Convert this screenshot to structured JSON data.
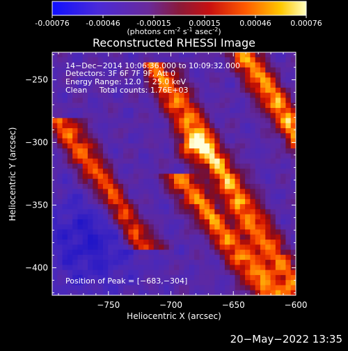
{
  "colorbar": {
    "ticks": [
      "-0.00076",
      "-0.00046",
      "-0.00015",
      "0.00015",
      "0.00046",
      "0.00076"
    ],
    "units_prefix": "(photons cm",
    "units_exp1": "-2",
    "units_s": " s",
    "units_exp2": "-1",
    "units_asec": " asec",
    "units_exp3": "-2",
    "units_suffix": ")"
  },
  "chart_data": {
    "type": "heatmap",
    "title": "Reconstructed RHESSI Image",
    "xlabel": "Heliocentric X (arcsec)",
    "ylabel": "Heliocentric Y (arcsec)",
    "xlim": [
      -795,
      -600
    ],
    "ylim": [
      -422,
      -228
    ],
    "xticks": [
      -750,
      -700,
      -650,
      -600
    ],
    "yticks": [
      -250,
      -300,
      -350,
      -400
    ],
    "xtick_labels": [
      "−750",
      "−700",
      "−650",
      "−600"
    ],
    "ytick_labels": [
      "−250",
      "−300",
      "−350",
      "−400"
    ],
    "value_range": [
      -0.00076,
      0.00076
    ],
    "peak": [
      -683,
      -304
    ],
    "colors": {
      "min": "#2b1bd0",
      "low": "#5a2aa8",
      "mid": "#8a1a3a",
      "high": "#ff3a00",
      "max": "#ffffff"
    },
    "annotations": {
      "line1": "14−Dec−2014 10:06:36.000 to 10:09:32.000",
      "line2": "Detectors: 3F 6F 7F 9F, Att 0",
      "line3": "Energy Range: 12.0 − 25.0 keV",
      "line4": "Clean     Total counts: 1.76E+03",
      "peak_text": "Position of Peak = [−683,−304]"
    }
  },
  "footer": {
    "date": "20−May−2022 13:35"
  }
}
